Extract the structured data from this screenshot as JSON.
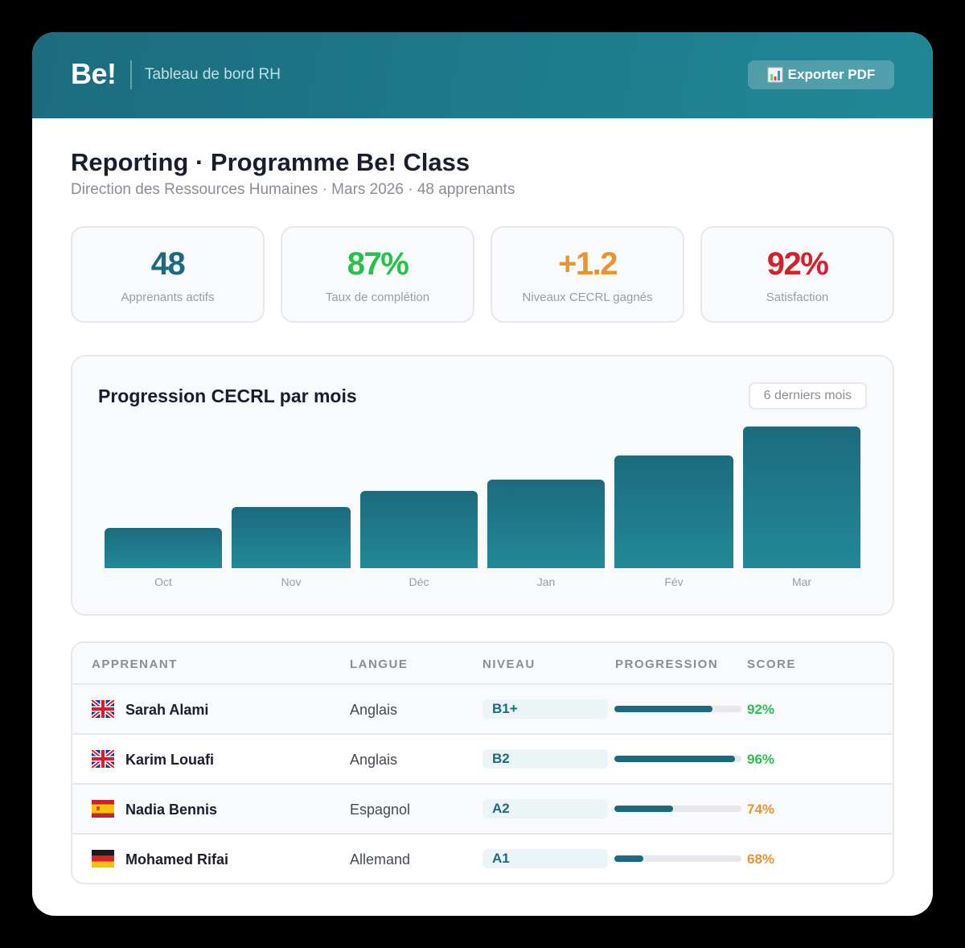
{
  "header": {
    "logo": "Be!",
    "subtitle": "Tableau de bord RH",
    "export_button": {
      "icon": "bar-chart-icon",
      "label": "Exporter PDF"
    }
  },
  "page": {
    "title": "Reporting · Programme Be! Class",
    "subtitle": "Direction des Ressources Humaines · Mars 2026 · 48 apprenants"
  },
  "kpis": [
    {
      "value": "48",
      "label": "Apprenants actifs",
      "color": "#1c6b7d"
    },
    {
      "value": "87%",
      "label": "Taux de complétion",
      "color": "#27c24c"
    },
    {
      "value": "+1.2",
      "label": "Niveaux CECRL gagnés",
      "color": "#ea9330"
    },
    {
      "value": "92%",
      "label": "Satisfaction",
      "color": "#d4212b"
    }
  ],
  "chart": {
    "title": "Progression CECRL par mois",
    "range_badge": "6 derniers mois"
  },
  "chart_data": {
    "type": "bar",
    "title": "Progression CECRL par mois",
    "categories": [
      "Oct",
      "Nov",
      "Déc",
      "Jan",
      "Fév",
      "Mar"
    ],
    "values": [
      50,
      76,
      96,
      110,
      140,
      176
    ],
    "xlabel": "",
    "ylabel": "",
    "grid": false,
    "legend": "none",
    "note": "relative bar heights (px), no y-axis shown"
  },
  "table": {
    "columns": [
      "APPRENANT",
      "LANGUE",
      "NIVEAU",
      "PROGRESSION",
      "SCORE"
    ],
    "rows": [
      {
        "flag": "uk-flag-icon",
        "name": "Sarah Alami",
        "language": "Anglais",
        "level": "B1+",
        "progress": 77,
        "score": "92%",
        "score_color": "#27c24c"
      },
      {
        "flag": "uk-flag-icon",
        "name": "Karim Louafi",
        "language": "Anglais",
        "level": "B2",
        "progress": 95,
        "score": "96%",
        "score_color": "#27c24c"
      },
      {
        "flag": "spain-flag-icon",
        "name": "Nadia Bennis",
        "language": "Espagnol",
        "level": "A2",
        "progress": 46,
        "score": "74%",
        "score_color": "#ea9330"
      },
      {
        "flag": "germany-flag-icon",
        "name": "Mohamed Rifai",
        "language": "Allemand",
        "level": "A1",
        "progress": 23,
        "score": "68%",
        "score_color": "#ea9330"
      }
    ]
  },
  "colors": {
    "brand": "#1c6b7d",
    "brand_light": "#228898",
    "success": "#27c24c",
    "warning": "#ea9330",
    "danger": "#d4212b"
  }
}
